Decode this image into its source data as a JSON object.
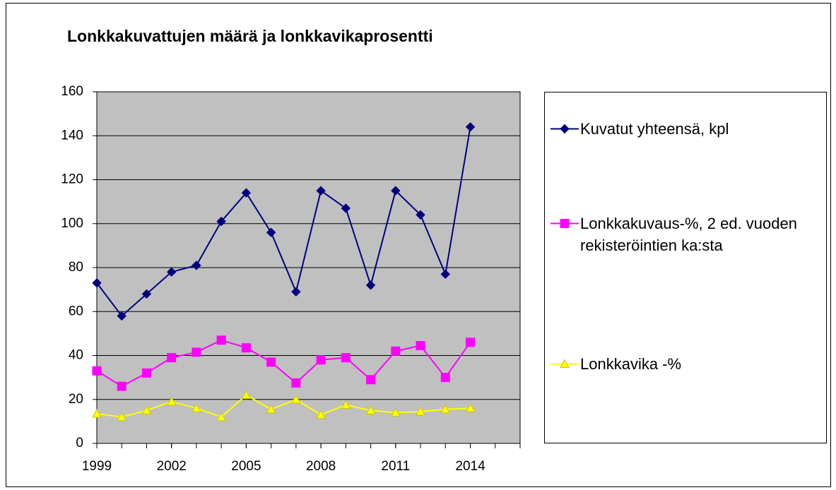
{
  "chart_data": {
    "type": "line",
    "title": "Lonkkakuvattujen määrä ja lonkkavikaprosentti",
    "x": [
      1999,
      2000,
      2001,
      2002,
      2003,
      2004,
      2005,
      2006,
      2007,
      2008,
      2009,
      2010,
      2011,
      2012,
      2013,
      2014
    ],
    "series": [
      {
        "name": "Kuvatut yhteensä, kpl",
        "color": "#000080",
        "marker": "diamond",
        "values": [
          73,
          58,
          68,
          78,
          81,
          101,
          114,
          96,
          69,
          115,
          107,
          72,
          115,
          104,
          77,
          144
        ]
      },
      {
        "name": "Lonkkakuvaus-%, 2 ed. vuoden rekisteröintien ka:sta",
        "color": "#ff00ff",
        "marker": "square",
        "values": [
          33,
          26,
          32,
          39,
          41.5,
          47,
          43.5,
          37,
          27.5,
          38,
          39,
          29,
          42,
          44.5,
          30,
          46
        ]
      },
      {
        "name": "Lonkkavika -%",
        "color": "#ffff00",
        "marker": "triangle",
        "values": [
          13.5,
          12,
          15,
          19,
          16,
          12,
          22,
          15.5,
          20,
          13,
          17.5,
          15,
          14,
          14.5,
          15.5,
          16
        ]
      }
    ],
    "xlim": [
      1999,
      2016
    ],
    "xticks": [
      1999,
      2002,
      2005,
      2008,
      2011,
      2014
    ],
    "ylim": [
      0,
      160
    ],
    "yticks": [
      0,
      20,
      40,
      60,
      80,
      100,
      120,
      140,
      160
    ],
    "grid": true,
    "plot_background": "#c0c0c0",
    "legend": "right"
  }
}
